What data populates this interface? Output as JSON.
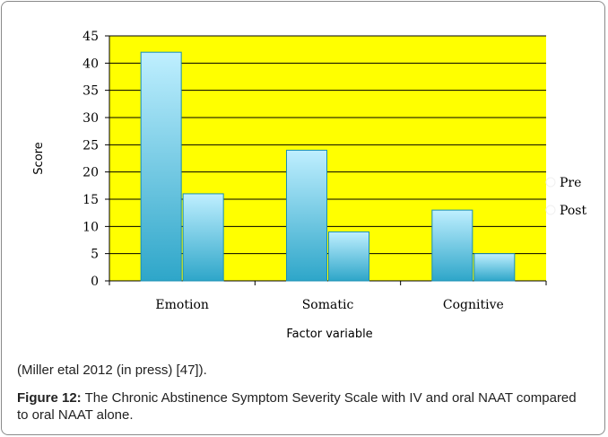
{
  "chart_data": {
    "type": "bar",
    "categories": [
      "Emotion",
      "Somatic",
      "Cognitive"
    ],
    "series": [
      {
        "name": "Pre",
        "values": [
          42,
          24,
          13
        ]
      },
      {
        "name": "Post",
        "values": [
          16,
          9,
          5
        ]
      }
    ],
    "xlabel": "Factor variable",
    "ylabel": "Score",
    "ylim": [
      0,
      45
    ],
    "yticks": [
      0,
      5,
      10,
      15,
      20,
      25,
      30,
      35,
      40,
      45
    ],
    "grid": true,
    "legend": "right",
    "colors": {
      "plot_background": "#ffff00",
      "bar_top": "#bfefff",
      "bar_bottom": "#2ea6c9",
      "bar_stroke": "#1a8fb3",
      "grid": "#000000"
    }
  },
  "caption": {
    "source": "(Miller etal 2012 (in press) [47]).",
    "figure_label": "Figure 12:",
    "figure_text": "The Chronic Abstinence Symptom Severity Scale with IV and oral NAAT compared to oral NAAT alone."
  }
}
